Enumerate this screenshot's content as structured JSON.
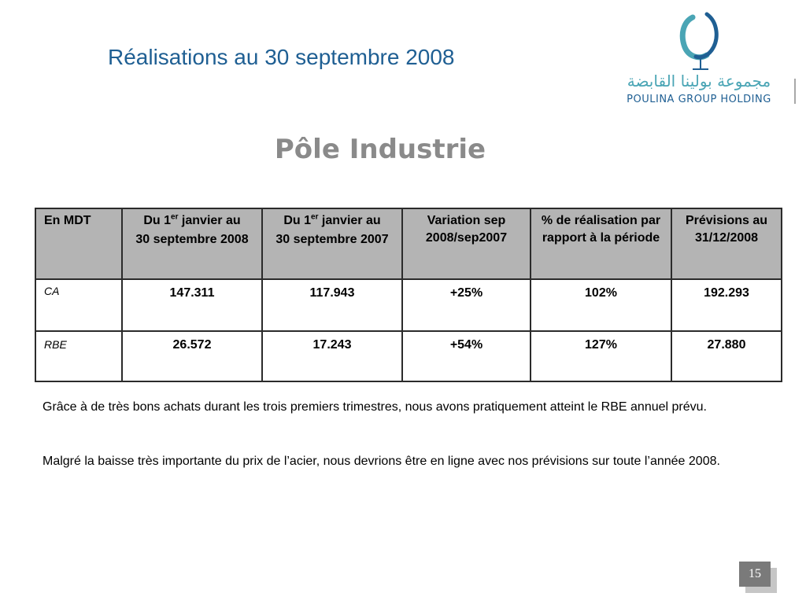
{
  "slide": {
    "title": "Réalisations au 30 septembre 2008",
    "subtitle": "Pôle Industrie",
    "page_number": "15"
  },
  "logo": {
    "arabic_text": "مجموعة بولينا القابضة",
    "latin_text": "POULINA GROUP HOLDING",
    "colors": {
      "blue": "#1f5f93",
      "teal": "#4aa5b5",
      "gray": "#8a8a8a"
    }
  },
  "table": {
    "headers": [
      {
        "line1": "En MDT"
      },
      {
        "line1_pre": "Du 1",
        "line1_sup": "er",
        "line1_post": " janvier au",
        "line2": "30 septembre 2008"
      },
      {
        "line1_pre": "Du 1",
        "line1_sup": "er",
        "line1_post": " janvier au",
        "line2": "30 septembre 2007"
      },
      {
        "line1": "Variation sep 2008/sep2007"
      },
      {
        "line1": "% de réalisation par rapport à la période"
      },
      {
        "line1": "Prévisions au 31/12/2008"
      }
    ],
    "rows": [
      {
        "label": "CA",
        "cells": [
          "147.311",
          "117.943",
          "+25%",
          "102%",
          "192.293"
        ]
      },
      {
        "label": "RBE",
        "cells": [
          "26.572",
          "17.243",
          "+54%",
          "127%",
          "27.880"
        ]
      }
    ]
  },
  "paragraphs": [
    "Grâce à de très bons achats durant les trois premiers trimestres, nous avons pratiquement atteint le RBE annuel prévu.",
    "Malgré la baisse très importante du prix de l’acier, nous devrions être en ligne avec nos prévisions sur toute l’année 2008."
  ]
}
